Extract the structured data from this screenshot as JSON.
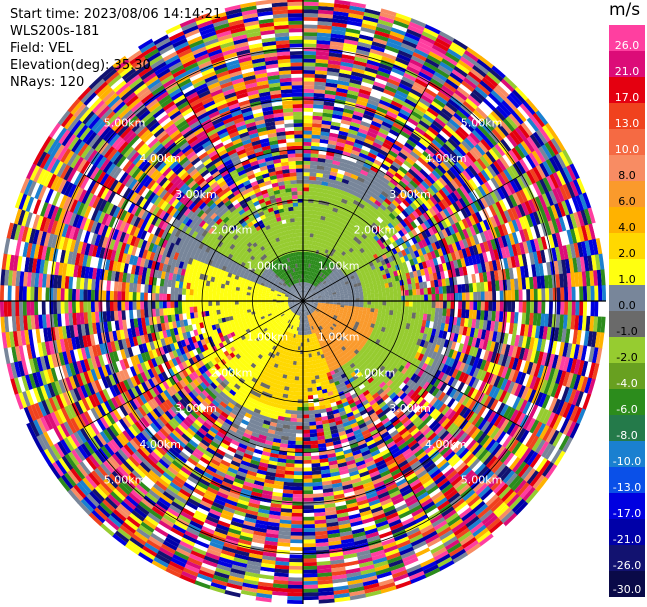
{
  "info": {
    "start_time": "Start time: 2023/08/06 14:14:21",
    "instrument": "WLS200s-181",
    "field": "Field: VEL",
    "elevation": "Elevation(deg): 35.30",
    "nrays": "NRays: 120"
  },
  "colorbar": {
    "unit": "m/s",
    "ticks": [
      "26.0",
      "21.0",
      "17.0",
      "13.0",
      "10.0",
      "8.0",
      "6.0",
      "4.0",
      "2.0",
      "1.0",
      "0.0",
      "-1.0",
      "-2.0",
      "-4.0",
      "-6.0",
      "-8.0",
      "-10.0",
      "-13.0",
      "-17.0",
      "-21.0",
      "-26.0",
      "-30.0"
    ]
  },
  "chart_data": {
    "type": "heatmap",
    "projection": "polar-ppi",
    "field": "VEL",
    "units": "m/s",
    "nrays": 120,
    "elevation_deg": 35.3,
    "range_rings_km": [
      1.0,
      2.0,
      3.0,
      4.0,
      5.0
    ],
    "ring_labels": [
      "1.00km",
      "2.00km",
      "3.00km",
      "4.00km",
      "5.00km"
    ],
    "value_bins": [
      {
        "min": 26.0,
        "max": 30.0,
        "color": "#ff3fa0"
      },
      {
        "min": 21.0,
        "max": 26.0,
        "color": "#dc0c78"
      },
      {
        "min": 17.0,
        "max": 21.0,
        "color": "#e40010"
      },
      {
        "min": 13.0,
        "max": 17.0,
        "color": "#f0421e"
      },
      {
        "min": 10.0,
        "max": 13.0,
        "color": "#f56a43"
      },
      {
        "min": 8.0,
        "max": 10.0,
        "color": "#f88c63"
      },
      {
        "min": 6.0,
        "max": 8.0,
        "color": "#fa9a2c"
      },
      {
        "min": 4.0,
        "max": 6.0,
        "color": "#ffb200"
      },
      {
        "min": 2.0,
        "max": 4.0,
        "color": "#ffd800"
      },
      {
        "min": 1.0,
        "max": 2.0,
        "color": "#ffff10"
      },
      {
        "min": 0.0,
        "max": 1.0,
        "color": "#78869a"
      },
      {
        "min": -1.0,
        "max": 0.0,
        "color": "#6a6a6a"
      },
      {
        "min": -2.0,
        "max": -1.0,
        "color": "#96cc30"
      },
      {
        "min": -4.0,
        "max": -2.0,
        "color": "#68a020"
      },
      {
        "min": -6.0,
        "max": -4.0,
        "color": "#2c8c1c"
      },
      {
        "min": -8.0,
        "max": -6.0,
        "color": "#247a4a"
      },
      {
        "min": -10.0,
        "max": -8.0,
        "color": "#1a80d0"
      },
      {
        "min": -13.0,
        "max": -10.0,
        "color": "#0a50e8"
      },
      {
        "min": -17.0,
        "max": -13.0,
        "color": "#0000e0"
      },
      {
        "min": -21.0,
        "max": -17.0,
        "color": "#0000a8"
      },
      {
        "min": -26.0,
        "max": -21.0,
        "color": "#121270"
      },
      {
        "min": -30.0,
        "max": -26.0,
        "color": "#0a0a48"
      }
    ],
    "noise_palette": [
      "#ff3fa0",
      "#dc0c78",
      "#e40010",
      "#f0421e",
      "#f88c63",
      "#ffb200",
      "#ffff10",
      "#78869a",
      "#96cc30",
      "#2c8c1c",
      "#1a80d0",
      "#0000e0",
      "#0000a8",
      "#121270",
      "#ffffff"
    ],
    "signal_regions": [
      {
        "az_from": 0,
        "az_to": 360,
        "r_from": 0.0,
        "r_to": 3.0,
        "color": "#78869a"
      },
      {
        "az_from": 315,
        "az_to": 405,
        "r_from": 0.4,
        "r_to": 1.3,
        "color": "#2c8c1c"
      },
      {
        "az_from": 300,
        "az_to": 420,
        "r_from": 1.0,
        "r_to": 2.3,
        "color": "#96cc30"
      },
      {
        "az_from": 40,
        "az_to": 150,
        "r_from": 1.2,
        "r_to": 2.6,
        "color": "#96cc30"
      },
      {
        "az_from": 95,
        "az_to": 165,
        "r_from": 0.3,
        "r_to": 1.5,
        "color": "#fa9a2c"
      },
      {
        "az_from": 190,
        "az_to": 290,
        "r_from": 0.3,
        "r_to": 2.4,
        "color": "#ffff10"
      },
      {
        "az_from": 160,
        "az_to": 210,
        "r_from": 0.7,
        "r_to": 2.2,
        "color": "#ffd800"
      }
    ]
  }
}
